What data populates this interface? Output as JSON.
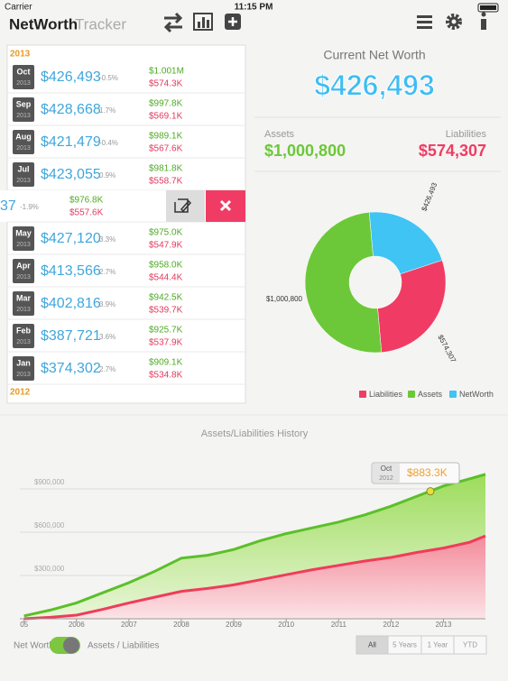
{
  "status_bar": {
    "carrier": "Carrier",
    "time": "11:15 PM"
  },
  "app": {
    "title_bold": "NetWorth",
    "title_light": "Tracker"
  },
  "list": {
    "year_top": "2013",
    "entries": [
      {
        "month": "Oct",
        "year": "2013",
        "value": "$426,493",
        "change": "-0.5%",
        "assets": "$1.001M",
        "liabilities": "$574.3K"
      },
      {
        "month": "Sep",
        "year": "2013",
        "value": "$428,668",
        "change": "1.7%",
        "assets": "$997.8K",
        "liabilities": "$569.1K"
      },
      {
        "month": "Aug",
        "year": "2013",
        "value": "$421,479",
        "change": "-0.4%",
        "assets": "$989.1K",
        "liabilities": "$567.6K"
      },
      {
        "month": "Jul",
        "year": "2013",
        "value": "$423,055",
        "change": "0.9%",
        "assets": "$981.8K",
        "liabilities": "$558.7K"
      },
      {
        "month": "May",
        "year": "2013",
        "value": "$427,120",
        "change": "3.3%",
        "assets": "$975.0K",
        "liabilities": "$547.9K"
      },
      {
        "month": "Apr",
        "year": "2013",
        "value": "$413,566",
        "change": "2.7%",
        "assets": "$958.0K",
        "liabilities": "$544.4K"
      },
      {
        "month": "Mar",
        "year": "2013",
        "value": "$402,816",
        "change": "3.9%",
        "assets": "$942.5K",
        "liabilities": "$539.7K"
      },
      {
        "month": "Feb",
        "year": "2013",
        "value": "$387,721",
        "change": "3.6%",
        "assets": "$925.7K",
        "liabilities": "$537.9K"
      },
      {
        "month": "Jan",
        "year": "2013",
        "value": "$374,302",
        "change": "2.7%",
        "assets": "$909.1K",
        "liabilities": "$534.8K"
      }
    ],
    "swiped_row": {
      "value": "37",
      "change": "-1.9%",
      "assets": "$976.8K",
      "liabilities": "$557.6K"
    },
    "year_bottom": "2012"
  },
  "summary": {
    "title": "Current Net Worth",
    "net_worth": "$426,493",
    "assets_label": "Assets",
    "assets": "$1,000,800",
    "liabilities_label": "Liabilities",
    "liabilities": "$574,307"
  },
  "pie": {
    "type": "pie",
    "labels": [
      "Liabilities",
      "Assets",
      "NetWorth"
    ],
    "values": [
      574307,
      1000800,
      426493
    ],
    "value_labels": [
      "$574,307",
      "$1,000,800",
      "$426,493"
    ],
    "colors": [
      "#f03c64",
      "#6cc838",
      "#3fc4f4"
    ]
  },
  "history": {
    "type": "area",
    "title": "Assets/Liabilities History",
    "x": [
      2005,
      2005.5,
      2006,
      2006.5,
      2007,
      2007.5,
      2008,
      2008.5,
      2009,
      2009.5,
      2010,
      2010.5,
      2011,
      2011.5,
      2012,
      2012.5,
      2013,
      2013.5,
      2013.8
    ],
    "series": [
      {
        "name": "Assets",
        "color": "#5cbf2a",
        "values": [
          20000,
          60000,
          110000,
          180000,
          250000,
          330000,
          420000,
          440000,
          480000,
          540000,
          590000,
          630000,
          670000,
          720000,
          780000,
          850000,
          920000,
          970000,
          1000800
        ]
      },
      {
        "name": "Liabilities",
        "color": "#f03c5a",
        "values": [
          0,
          10000,
          25000,
          65000,
          110000,
          150000,
          190000,
          210000,
          235000,
          270000,
          305000,
          340000,
          370000,
          400000,
          425000,
          460000,
          490000,
          530000,
          574300
        ]
      }
    ],
    "xlim": [
      2004.92,
      2013.8
    ],
    "ylim": [
      0,
      1050000
    ],
    "xticks": [
      {
        "value": 2005,
        "label": "05"
      },
      2006,
      2007,
      2008,
      2009,
      2010,
      2011,
      2012,
      2013
    ],
    "yticks": [
      {
        "value": 300000,
        "label": "$300,000"
      },
      {
        "value": 600000,
        "label": "$600,000"
      },
      {
        "value": 900000,
        "label": "$900,000"
      }
    ],
    "grid": true,
    "tooltip": {
      "month": "Oct",
      "year": "2012",
      "x": 2012.75,
      "value": 883300,
      "value_label": "$883.3K"
    }
  },
  "controls": {
    "net_worth_label": "Net Worth",
    "assets_liabilities_label": "Assets / Liabilities",
    "ranges": [
      "All",
      "5 Years",
      "1 Year",
      "YTD"
    ]
  }
}
